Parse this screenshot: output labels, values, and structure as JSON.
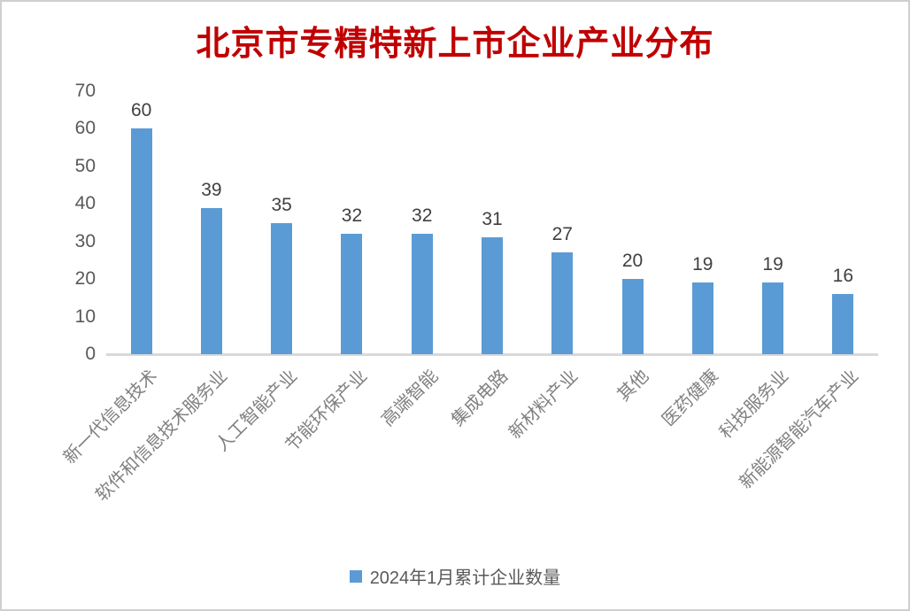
{
  "chart_data": {
    "type": "bar",
    "title": "北京市专精特新上市企业产业分布",
    "categories": [
      "新一代信息技术",
      "软件和信息技术服务业",
      "人工智能产业",
      "节能环保产业",
      "高端智能",
      "集成电路",
      "新材料产业",
      "其他",
      "医药健康",
      "科技服务业",
      "新能源智能汽车产业"
    ],
    "series": [
      {
        "name": "2024年1月累计企业数量",
        "values": [
          60,
          39,
          35,
          32,
          32,
          31,
          27,
          20,
          19,
          19,
          16
        ]
      }
    ],
    "xlabel": "",
    "ylabel": "",
    "ylim": [
      0,
      70
    ],
    "yticks": [
      0,
      10,
      20,
      30,
      40,
      50,
      60,
      70
    ],
    "grid": false,
    "data_labels": true,
    "legend_position": "bottom",
    "x_label_rotation_deg": 45
  },
  "legend": {
    "label": "2024年1月累计企业数量"
  },
  "colors": {
    "title": "#C00000",
    "bar": "#5B9BD5",
    "axis_line": "#D9D9D9",
    "tick_label": "#595959",
    "data_label": "#404040",
    "category_label": "#808080",
    "legend_text": "#595959",
    "border": "#CFCFCF",
    "background": "#FFFFFF"
  }
}
